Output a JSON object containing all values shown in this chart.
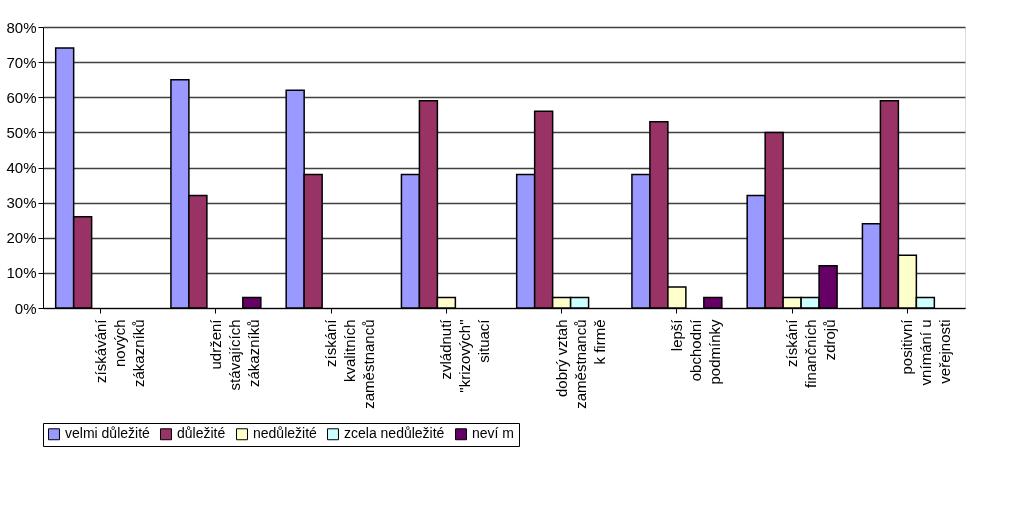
{
  "chart_data": {
    "type": "bar",
    "categories": [
      "získávání\nnových\nzákazníků",
      "udržení\nstávajících\nzákazníků",
      "získání\nkvalitních\nzaměstnanců",
      "zvládnutí\n\"krizových\"\nsituací",
      "dobrý vztah\nzaměstnanců\nk firmě",
      "lepší\nobchodní\npodmínky",
      "získání\nfinančních\nzdrojů",
      "positivní\nvnímání u\nveřejnosti"
    ],
    "series": [
      {
        "name": "velmi důležité",
        "color": "#9999ff",
        "values": [
          74,
          65,
          62,
          38,
          38,
          38,
          32,
          24
        ]
      },
      {
        "name": "důležité",
        "color": "#993366",
        "values": [
          26,
          32,
          38,
          59,
          56,
          53,
          50,
          59
        ]
      },
      {
        "name": "nedůležité",
        "color": "#ffffcc",
        "values": [
          null,
          null,
          null,
          3,
          3,
          6,
          3,
          15
        ]
      },
      {
        "name": "zcela nedůležité",
        "color": "#ccffff",
        "values": [
          null,
          null,
          null,
          null,
          3,
          null,
          3,
          3
        ]
      },
      {
        "name": "neví m",
        "color": "#660066",
        "values": [
          null,
          3,
          null,
          null,
          null,
          3,
          12,
          null
        ]
      }
    ],
    "ylim": [
      0,
      80
    ],
    "yticks": [
      {
        "value": 0,
        "label": "0%"
      },
      {
        "value": 10,
        "label": "10%"
      },
      {
        "value": 20,
        "label": "20%"
      },
      {
        "value": 30,
        "label": "30%"
      },
      {
        "value": 40,
        "label": "40%"
      },
      {
        "value": 50,
        "label": "50%"
      },
      {
        "value": 60,
        "label": "60%"
      },
      {
        "value": 70,
        "label": "70%"
      },
      {
        "value": 80,
        "label": "80%"
      }
    ],
    "grid": "y",
    "legend": "bottom"
  }
}
